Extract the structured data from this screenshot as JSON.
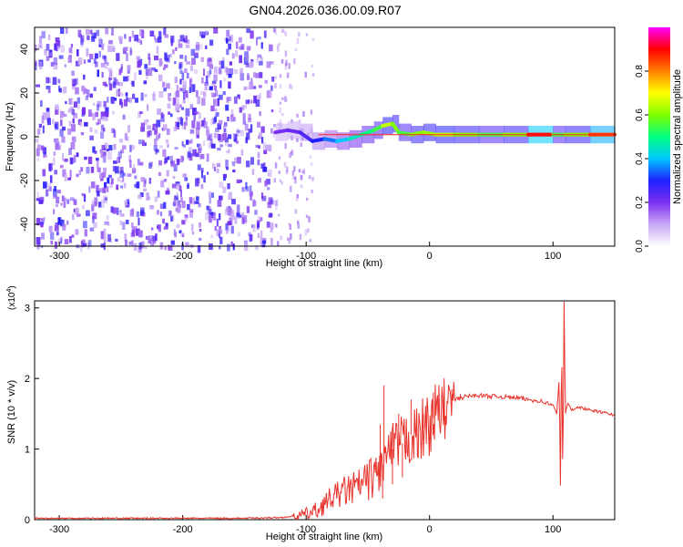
{
  "figure_title": "GN04.2026.036.00.09.R07",
  "chart_data": [
    {
      "type": "heatmap",
      "title": "GN04.2026.036.00.09.R07",
      "xlabel": "Height of straight line (km)",
      "ylabel": "Frequency (Hz)",
      "xlim": [
        -320,
        150
      ],
      "ylim": [
        -50,
        50
      ],
      "x_ticks": [
        -300,
        -200,
        -100,
        0,
        100
      ],
      "x_tick_labels": [
        "-300",
        "-200",
        "-100",
        "0",
        "100"
      ],
      "y_ticks": [
        -40,
        -20,
        0,
        20,
        40
      ],
      "y_tick_labels": [
        "-40",
        "-20",
        "0",
        "20",
        "40"
      ],
      "colorbar": {
        "label": "Normalized spectral amplitude",
        "range": [
          0,
          1
        ],
        "ticks": [
          0.0,
          0.2,
          0.4,
          0.6,
          0.8
        ],
        "tick_labels": [
          "0.0",
          "0.2",
          "0.4",
          "0.6",
          "0.8"
        ],
        "colors": [
          "#ffffff",
          "#c8a8f4",
          "#7b2ff0",
          "#2020ff",
          "#00c8ff",
          "#00ff80",
          "#80ff00",
          "#ffff00",
          "#ff8000",
          "#ff0000",
          "#ff00ff"
        ]
      },
      "noise_region": {
        "x_start": -320,
        "x_end": -128,
        "level": 0.2
      },
      "sparse_region": {
        "x_start": -128,
        "x_end": -95,
        "level": 0.12
      },
      "strong_line": {
        "x_start": -90,
        "x_end": 150,
        "y": 1
      },
      "signal_ridge": [
        {
          "x": -125,
          "y": 2,
          "amp": 0.2
        },
        {
          "x": -115,
          "y": 3,
          "amp": 0.22
        },
        {
          "x": -105,
          "y": 2,
          "amp": 0.25
        },
        {
          "x": -95,
          "y": -2,
          "amp": 0.3
        },
        {
          "x": -85,
          "y": -1,
          "amp": 0.35
        },
        {
          "x": -75,
          "y": -2,
          "amp": 0.4
        },
        {
          "x": -65,
          "y": -1,
          "amp": 0.45
        },
        {
          "x": -55,
          "y": 1,
          "amp": 0.5
        },
        {
          "x": -45,
          "y": 3,
          "amp": 0.55
        },
        {
          "x": -38,
          "y": 5,
          "amp": 0.65
        },
        {
          "x": -30,
          "y": 6,
          "amp": 0.6
        },
        {
          "x": -25,
          "y": 2,
          "amp": 0.55
        },
        {
          "x": -15,
          "y": 1,
          "amp": 0.6
        },
        {
          "x": -5,
          "y": 2,
          "amp": 0.62
        },
        {
          "x": 5,
          "y": 1,
          "amp": 0.65
        },
        {
          "x": 20,
          "y": 1,
          "amp": 0.6
        },
        {
          "x": 40,
          "y": 1,
          "amp": 0.55
        },
        {
          "x": 60,
          "y": 1,
          "amp": 0.6
        },
        {
          "x": 80,
          "y": 1,
          "amp": 0.9
        },
        {
          "x": 100,
          "y": 1,
          "amp": 0.55
        },
        {
          "x": 110,
          "y": 1,
          "amp": 0.6
        },
        {
          "x": 130,
          "y": 1,
          "amp": 0.85
        },
        {
          "x": 150,
          "y": 1,
          "amp": 0.85
        }
      ]
    },
    {
      "type": "line",
      "xlabel": "Height of straight line (km)",
      "ylabel": "SNR (10 * v/v)",
      "y_multiplier": "(x10",
      "y_multiplier_exp": "4",
      "y_multiplier_close": ")",
      "xlim": [
        -320,
        150
      ],
      "ylim": [
        0,
        3.1
      ],
      "x_ticks": [
        -300,
        -200,
        -100,
        0,
        100
      ],
      "x_tick_labels": [
        "-300",
        "-200",
        "-100",
        "0",
        "100"
      ],
      "y_ticks": [
        0,
        1,
        2,
        3
      ],
      "y_tick_labels": [
        "0",
        "1",
        "2",
        "3"
      ],
      "color": "#e8342c",
      "series": [
        {
          "x": [
            -320,
            -250,
            -150,
            -120,
            -110,
            -100,
            -95,
            -90,
            -80,
            -70,
            -60,
            -50,
            -40,
            -35,
            -30,
            -25,
            -20,
            -15,
            -10,
            -5,
            0,
            5,
            10,
            15,
            20,
            25,
            30,
            40,
            50,
            60,
            70,
            80,
            90,
            100,
            103,
            105,
            106,
            107,
            108,
            109,
            110,
            112,
            115,
            120,
            130,
            140,
            150
          ],
          "y": [
            0.02,
            0.02,
            0.02,
            0.03,
            0.05,
            0.08,
            0.1,
            0.15,
            0.3,
            0.4,
            0.45,
            0.55,
            0.7,
            0.9,
            1.0,
            1.05,
            1.1,
            1.2,
            1.15,
            1.3,
            1.35,
            1.5,
            1.55,
            1.6,
            1.7,
            1.72,
            1.75,
            1.76,
            1.75,
            1.74,
            1.73,
            1.7,
            1.68,
            1.62,
            1.5,
            2.0,
            0.5,
            2.6,
            0.4,
            3.1,
            1.5,
            1.65,
            1.55,
            1.6,
            1.55,
            1.52,
            1.48
          ]
        }
      ],
      "spikes": [
        {
          "x": -40,
          "y": 1.35
        },
        {
          "x": -38,
          "y": 0.3
        },
        {
          "x": -37,
          "y": 1.9
        },
        {
          "x": -30,
          "y": 0.5
        },
        {
          "x": -25,
          "y": 1.5
        },
        {
          "x": -22,
          "y": 0.6
        },
        {
          "x": -15,
          "y": 1.7
        },
        {
          "x": -5,
          "y": 1.5
        },
        {
          "x": 3,
          "y": 1.8
        },
        {
          "x": 12,
          "y": 1.4
        },
        {
          "x": 18,
          "y": 1.85
        },
        {
          "x": 25,
          "y": 1.78
        }
      ]
    }
  ]
}
